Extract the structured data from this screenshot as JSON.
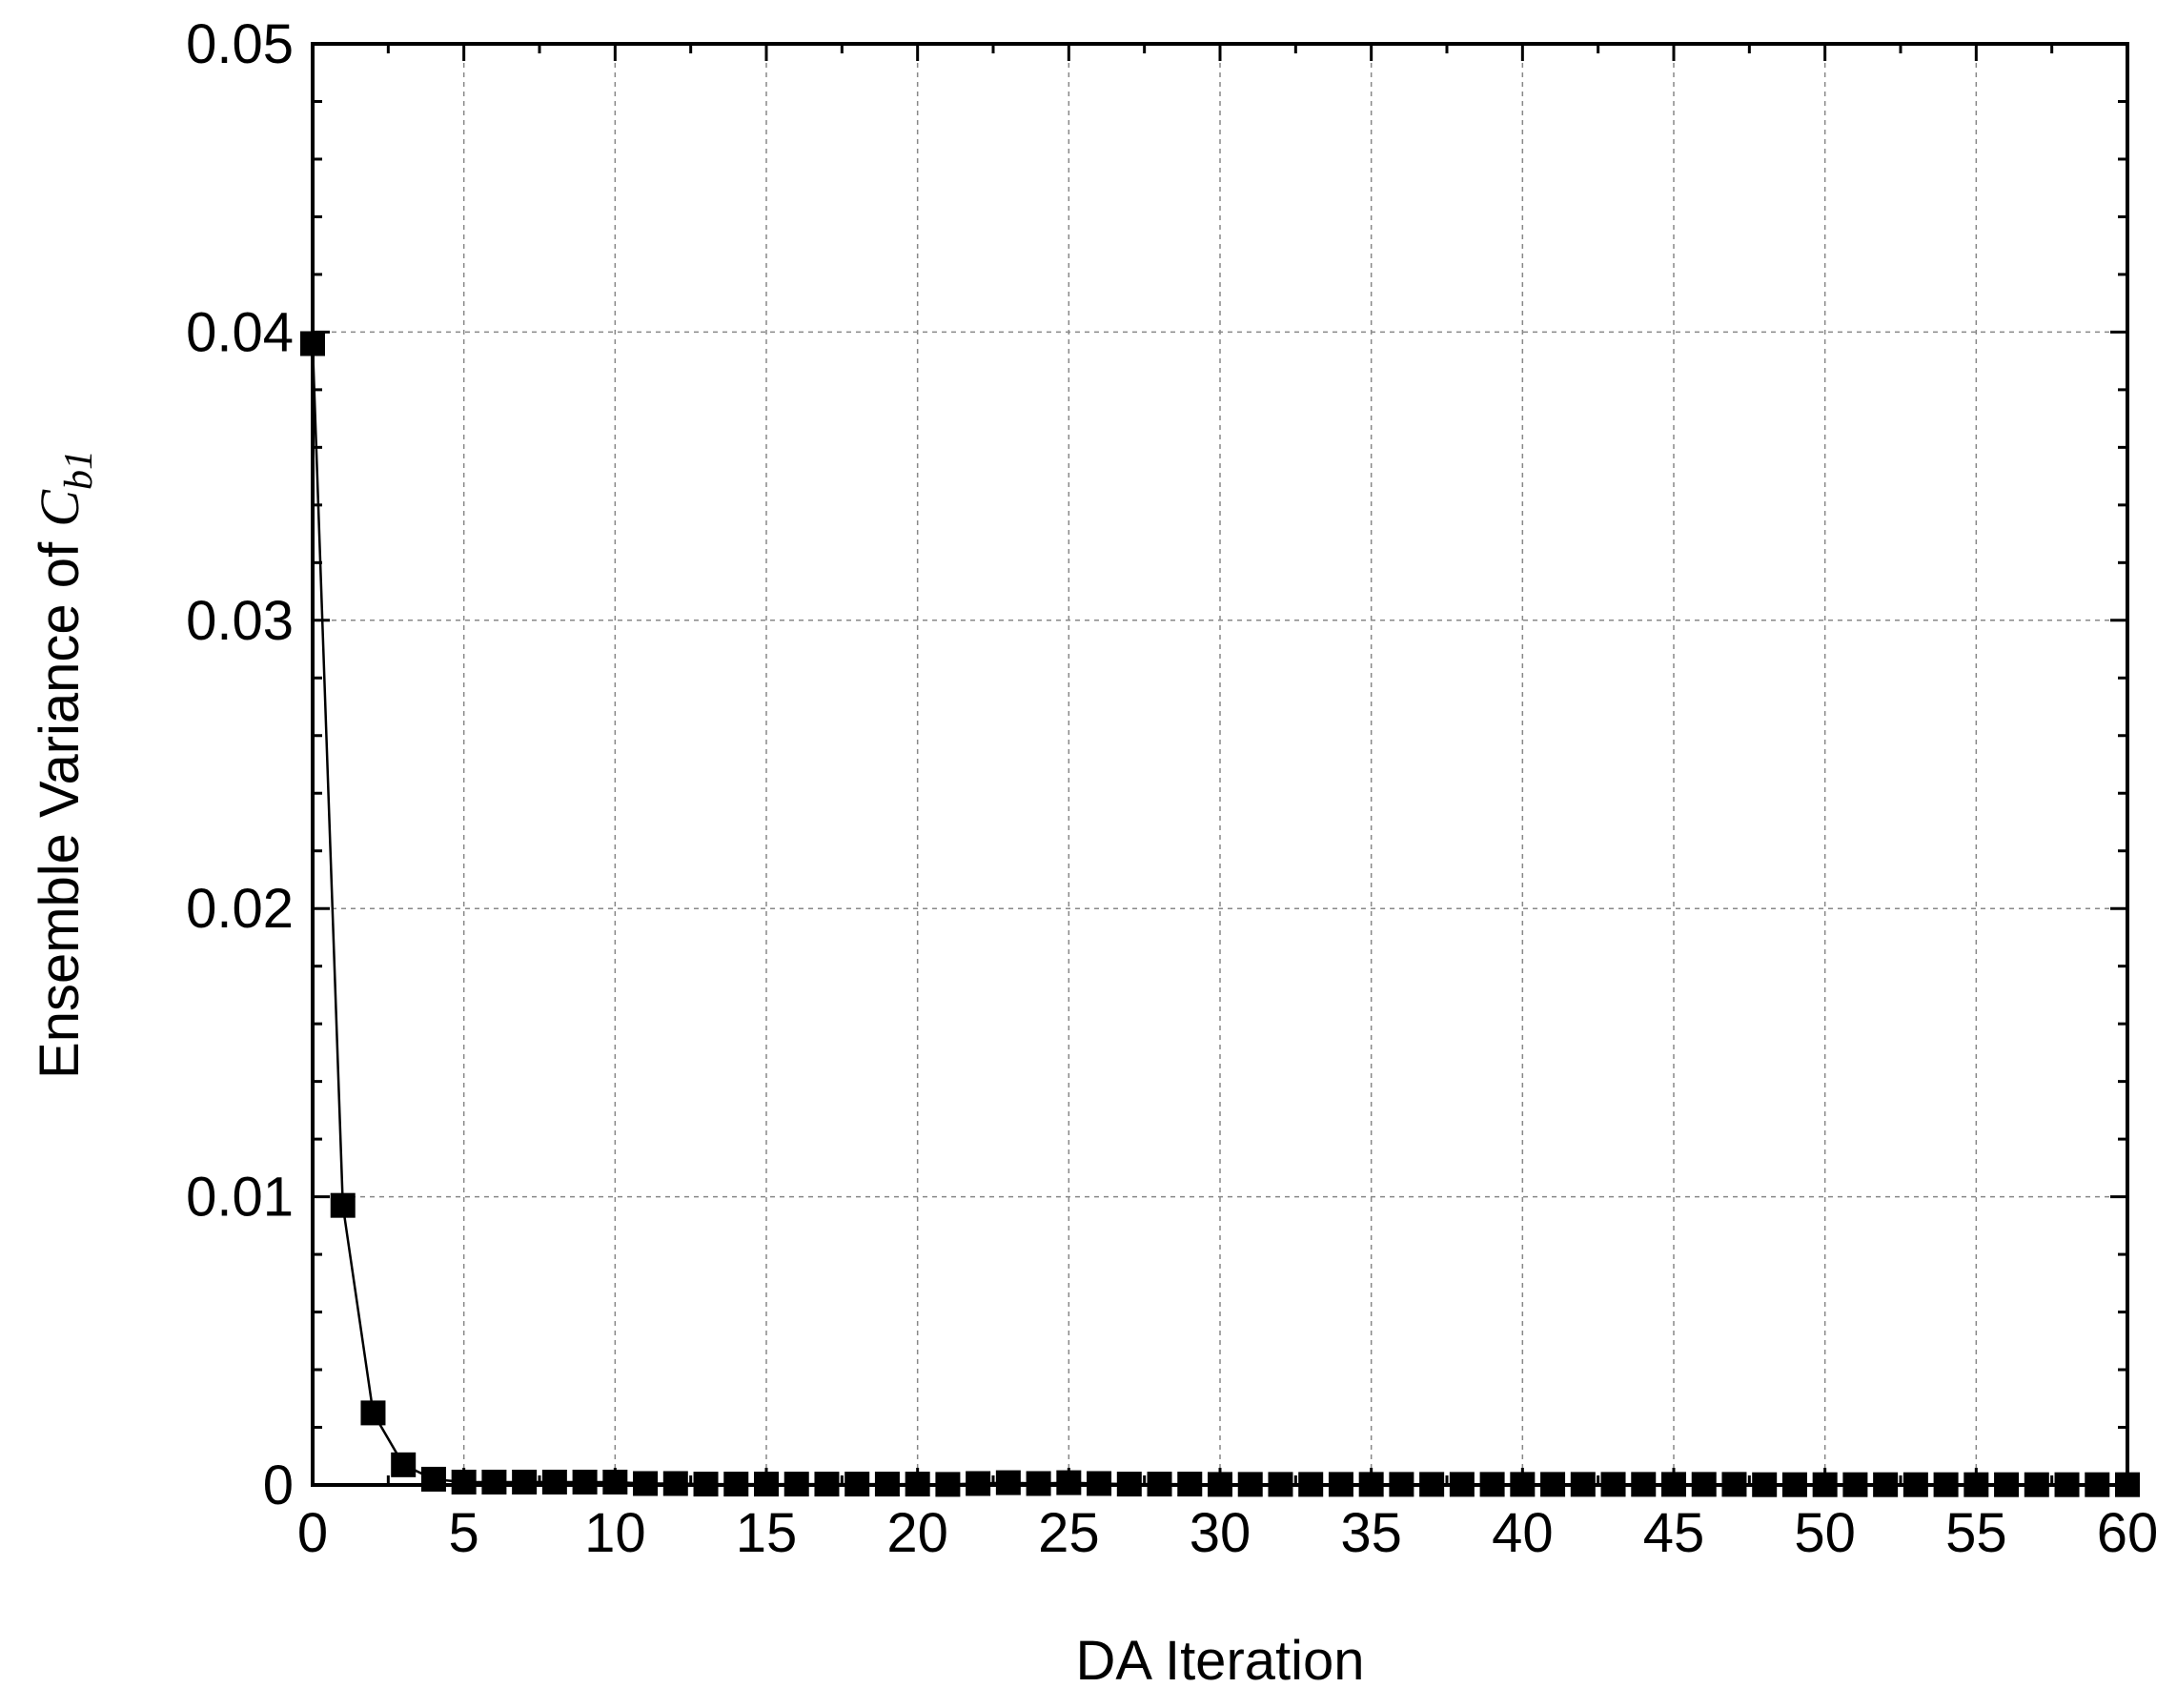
{
  "chart_data": {
    "type": "line",
    "title": "",
    "xlabel": "DA Iteration",
    "ylabel": {
      "text": "Ensemble Variance of ",
      "symbol": "C",
      "subscript": "b1"
    },
    "xlim": [
      0,
      60
    ],
    "ylim": [
      0,
      0.05
    ],
    "xticks": [
      0,
      5,
      10,
      15,
      20,
      25,
      30,
      35,
      40,
      45,
      50,
      55,
      60
    ],
    "yticks": [
      0,
      0.01,
      0.02,
      0.03,
      0.04,
      0.05
    ],
    "xtick_labels": [
      "0",
      "5",
      "10",
      "15",
      "20",
      "25",
      "30",
      "35",
      "40",
      "45",
      "50",
      "55",
      "60"
    ],
    "ytick_labels": [
      "0",
      "0.01",
      "0.02",
      "0.03",
      "0.04",
      "0.05"
    ],
    "grid": true,
    "marker": "square",
    "color": "#000000",
    "series": [
      {
        "x": [
          0,
          1,
          2,
          3,
          4,
          5,
          6,
          7,
          8,
          9,
          10,
          11,
          12,
          13,
          14,
          15,
          16,
          17,
          18,
          19,
          20,
          21,
          22,
          23,
          24,
          25,
          26,
          27,
          28,
          29,
          30,
          31,
          32,
          33,
          34,
          35,
          36,
          37,
          38,
          39,
          40,
          41,
          42,
          43,
          44,
          45,
          46,
          47,
          48,
          49,
          50,
          51,
          52,
          53,
          54,
          55,
          56,
          57,
          58,
          59,
          60
        ],
        "y": [
          0.0396,
          0.0097,
          0.0025,
          0.0007,
          0.0002,
          0.0001,
          0.0001,
          0.0001,
          0.0001,
          0.0001,
          0.0001,
          5e-05,
          5e-05,
          3e-05,
          3e-05,
          3e-05,
          3e-05,
          3e-05,
          3e-05,
          3e-05,
          3e-05,
          2e-05,
          5e-05,
          8e-05,
          5e-05,
          8e-05,
          5e-05,
          3e-05,
          3e-05,
          3e-05,
          2e-05,
          2e-05,
          2e-05,
          2e-05,
          2e-05,
          2e-05,
          2e-05,
          2e-05,
          2e-05,
          2e-05,
          2e-05,
          2e-05,
          2e-05,
          2e-05,
          2e-05,
          2e-05,
          2e-05,
          2e-05,
          1e-05,
          1e-05,
          1e-05,
          1e-05,
          1e-05,
          1e-05,
          1e-05,
          1e-05,
          1e-05,
          1e-05,
          1e-05,
          1e-05,
          1e-05
        ]
      }
    ]
  }
}
